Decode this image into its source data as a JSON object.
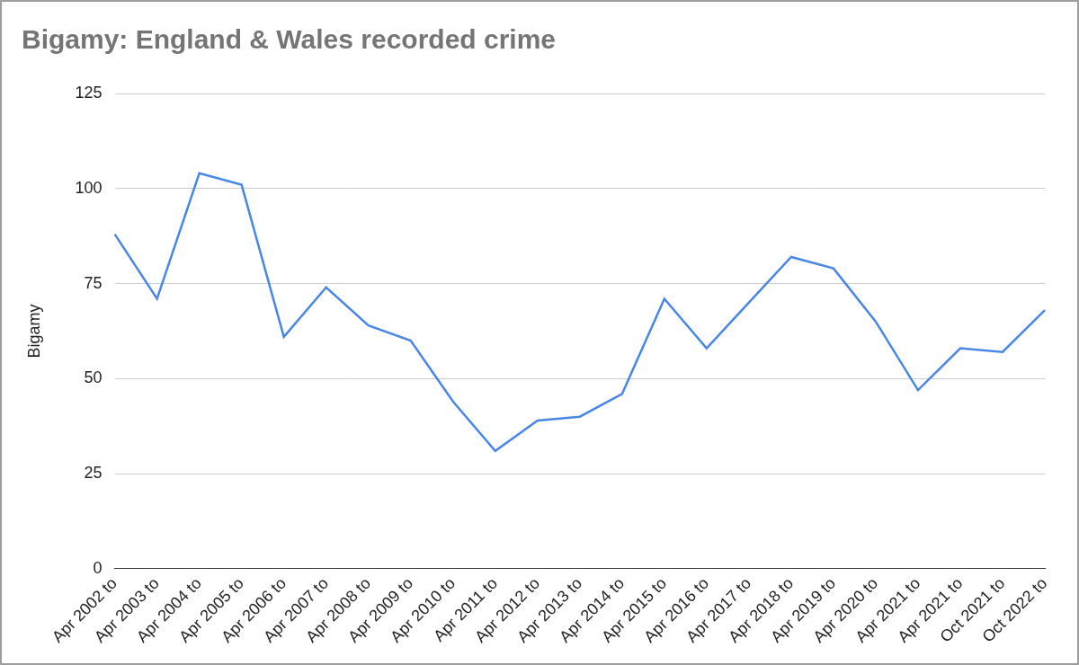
{
  "chart_data": {
    "type": "line",
    "title": "Bigamy: England & Wales recorded crime",
    "y_label": "Bigamy",
    "categories": [
      "Apr 2002 to",
      "Apr 2003 to",
      "Apr 2004 to",
      "Apr 2005 to",
      "Apr 2006 to",
      "Apr 2007 to",
      "Apr 2008 to",
      "Apr 2009 to",
      "Apr 2010 to",
      "Apr 2011 to",
      "Apr 2012 to",
      "Apr 2013 to",
      "Apr 2014 to",
      "Apr 2015 to",
      "Apr 2016 to",
      "Apr 2017 to",
      "Apr 2018 to",
      "Apr 2019 to",
      "Apr 2020 to",
      "Apr 2021 to",
      "Apr 2021 to",
      "Oct 2021 to",
      "Oct 2022 to"
    ],
    "values": [
      88,
      71,
      104,
      101,
      61,
      74,
      64,
      60,
      44,
      31,
      39,
      40,
      46,
      71,
      58,
      70,
      82,
      79,
      65,
      47,
      58,
      57,
      68
    ],
    "color": "#4a86e8",
    "ylim": [
      0,
      125
    ],
    "yticks": [
      0,
      25,
      50,
      75,
      100,
      125
    ],
    "grid": true
  }
}
